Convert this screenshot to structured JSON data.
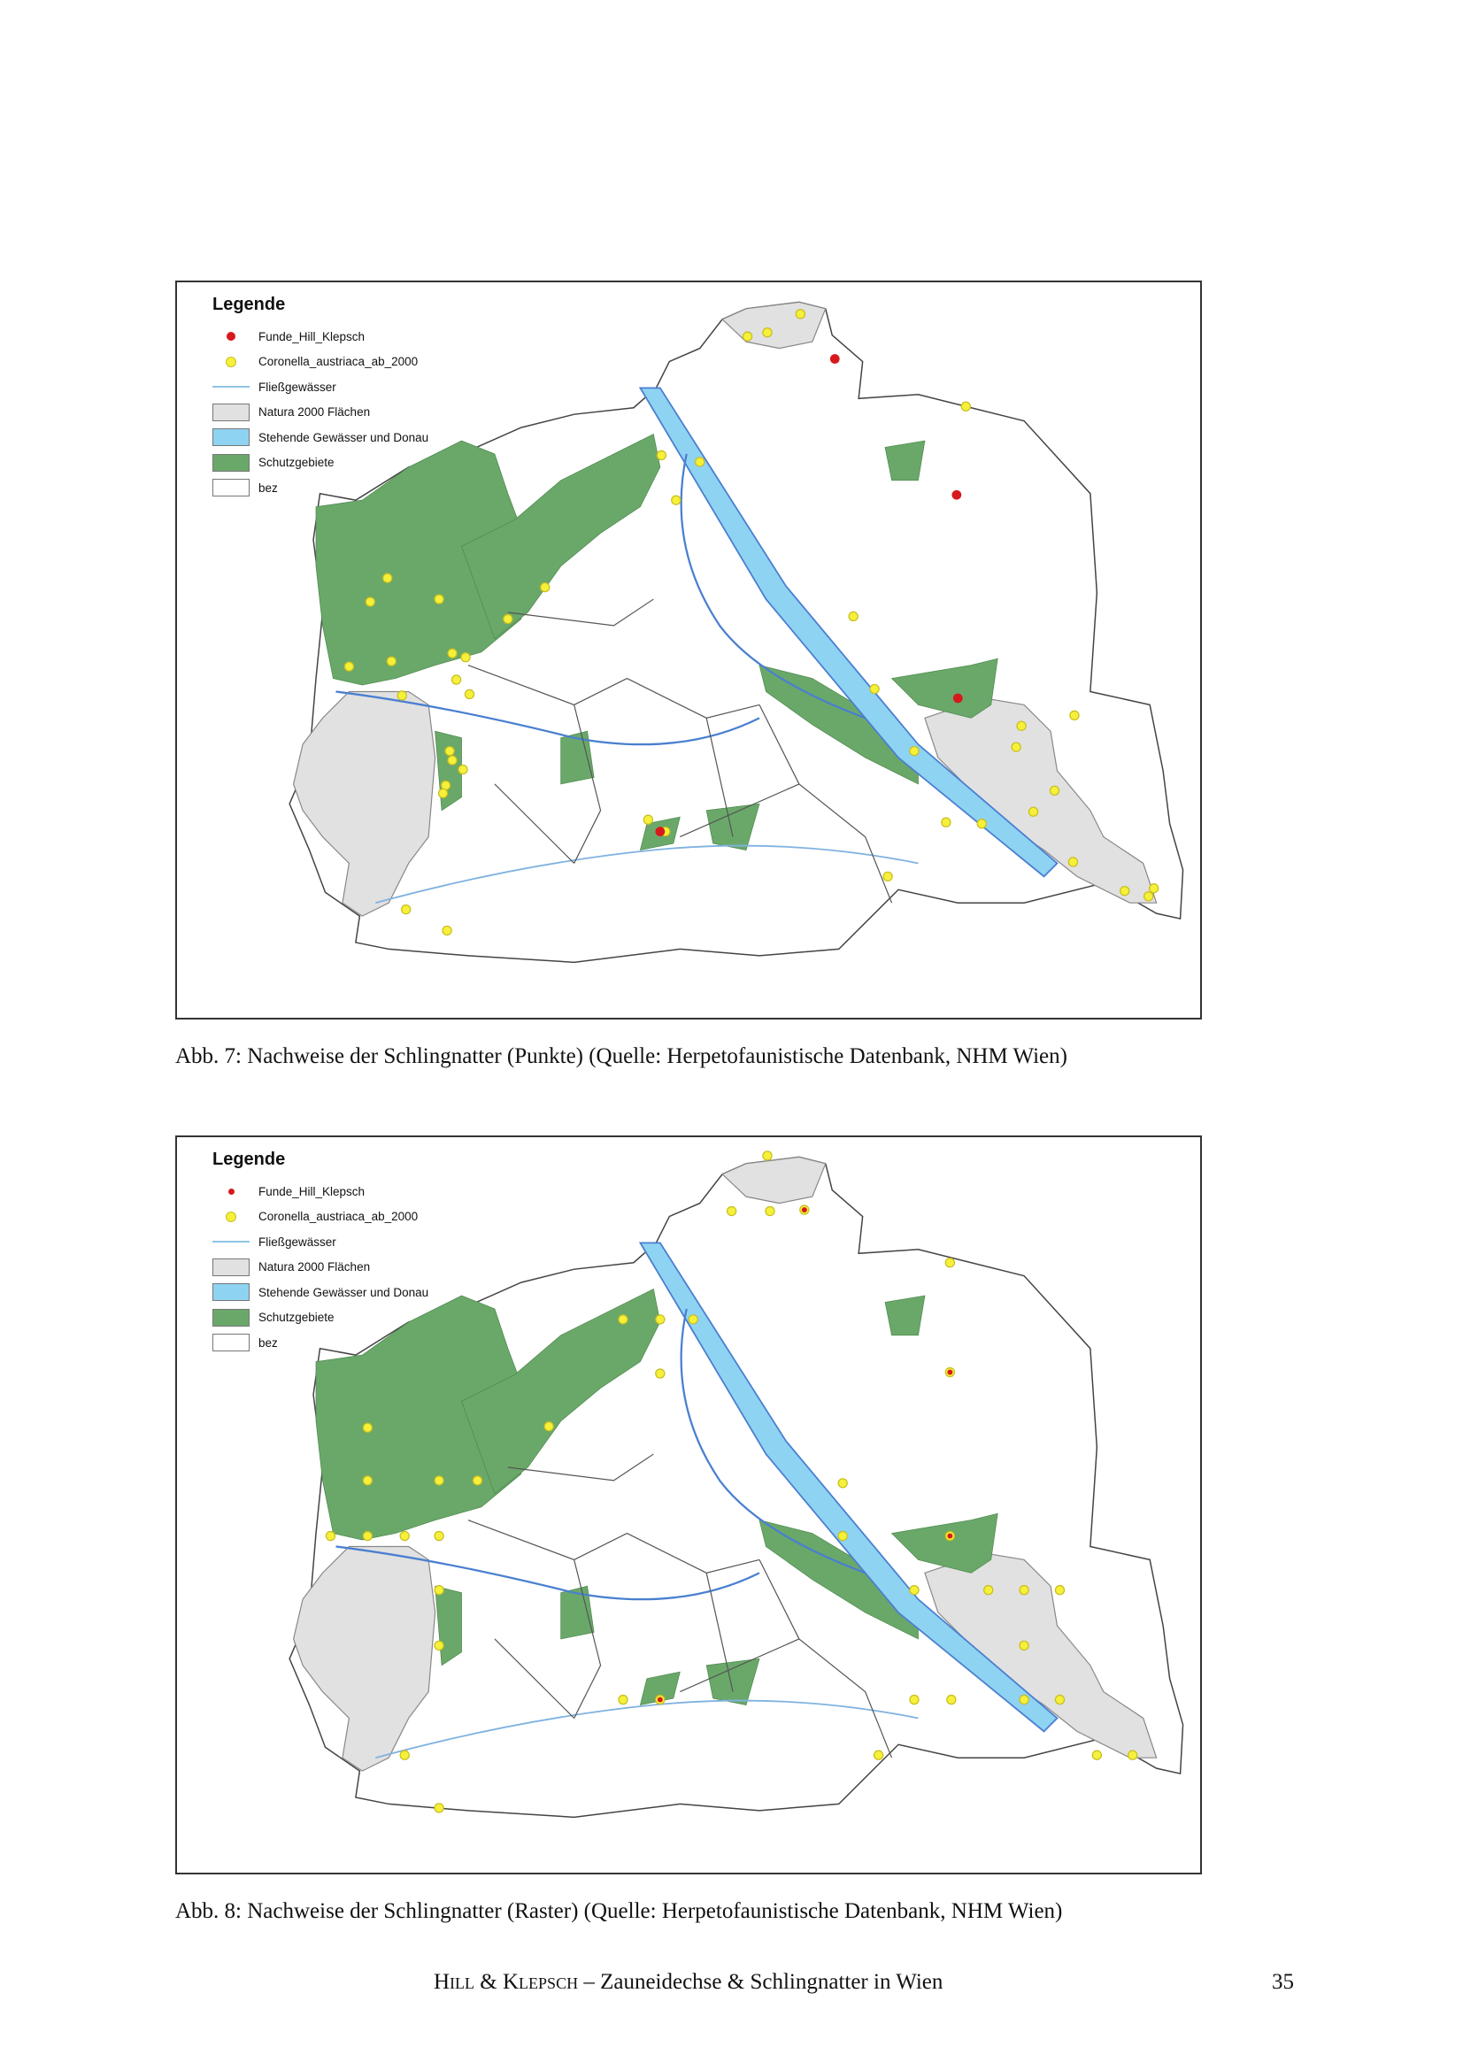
{
  "figures": [
    {
      "legend": {
        "title": "Legende",
        "items": [
          {
            "label": "Funde_Hill_Klepsch",
            "symbol": "red-dot",
            "color": "#d7191c"
          },
          {
            "label": "Coronella_austriaca_ab_2000",
            "symbol": "yellow-dot",
            "color": "#f5f03a"
          },
          {
            "label": "Fließgewässer",
            "symbol": "line",
            "color": "#8fc3e6"
          },
          {
            "label": "Natura 2000 Flächen",
            "symbol": "box",
            "color": "#e1e1e1"
          },
          {
            "label": "Stehende Gewässer und Donau",
            "symbol": "box",
            "color": "#8fd3f2"
          },
          {
            "label": "Schutzgebiete",
            "symbol": "box",
            "color": "#6aa86a"
          },
          {
            "label": "bez",
            "symbol": "box",
            "color": "#ffffff"
          }
        ]
      },
      "caption": "Abb. 7: Nachweise der Schlingnatter (Punkte) (Quelle: Herpetofaunistische Datenbank, NHM Wien)"
    },
    {
      "legend": {
        "title": "Legende",
        "items": [
          {
            "label": "Funde_Hill_Klepsch",
            "symbol": "red-dot",
            "color": "#d7191c"
          },
          {
            "label": "Coronella_austriaca_ab_2000",
            "symbol": "yellow-dot",
            "color": "#f5f03a"
          },
          {
            "label": "Fließgewässer",
            "symbol": "line",
            "color": "#8fc3e6"
          },
          {
            "label": "Natura 2000 Flächen",
            "symbol": "box",
            "color": "#e1e1e1"
          },
          {
            "label": "Stehende Gewässer und Donau",
            "symbol": "box",
            "color": "#8fd3f2"
          },
          {
            "label": "Schutzgebiete",
            "symbol": "box",
            "color": "#6aa86a"
          },
          {
            "label": "bez",
            "symbol": "box",
            "color": "#ffffff"
          }
        ]
      },
      "caption": "Abb. 8: Nachweise der Schlingnatter (Raster) (Quelle: Herpetofaunistische Datenbank, NHM Wien)"
    }
  ],
  "footer": {
    "author1": "Hill",
    "amp": " & ",
    "author2": "Klepsch",
    "title": " – Zauneidechse & Schlingnatter in Wien",
    "page": "35"
  }
}
